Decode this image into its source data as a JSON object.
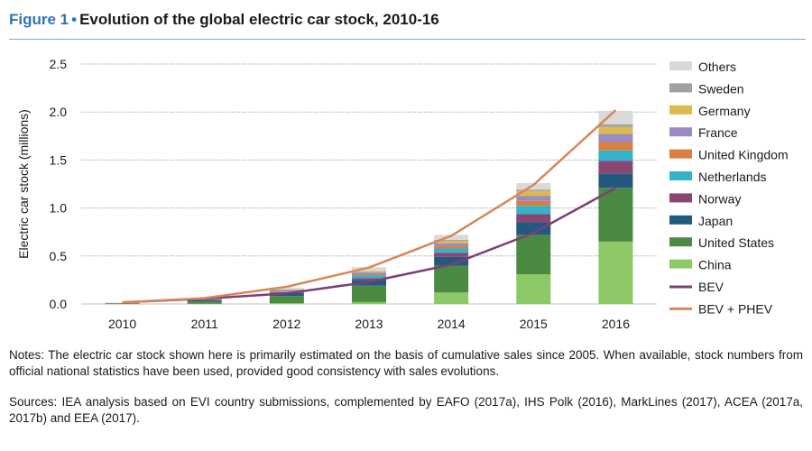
{
  "figure": {
    "number": "Figure 1",
    "bullet": "•",
    "title": "Evolution of the global electric car stock, 2010-16"
  },
  "notes": "Notes: The electric car stock shown here is primarily estimated on the basis of cumulative sales since 2005. When available, stock numbers from official national statistics have been used, provided good consistency with sales evolutions.",
  "sources": "Sources: IEA analysis based on EVI country submissions, complemented by EAFO (2017a), IHS Polk (2016), MarkLines (2017), ACEA (2017a, 2017b) and EEA (2017).",
  "chart_data": {
    "type": "bar",
    "stacked": true,
    "ylabel": "Electric car stock (millions)",
    "xlabel": "",
    "ylim": [
      0,
      2.5
    ],
    "yticks": [
      "0.0",
      "0.5",
      "1.0",
      "1.5",
      "2.0",
      "2.5"
    ],
    "grid": true,
    "legend_position": "right",
    "categories": [
      "2010",
      "2011",
      "2012",
      "2013",
      "2014",
      "2015",
      "2016"
    ],
    "series": [
      {
        "name": "China",
        "color": "#8cc866",
        "values": [
          0.0005,
          0.003,
          0.008,
          0.02,
          0.12,
          0.31,
          0.65
        ]
      },
      {
        "name": "United States",
        "color": "#4b8a43",
        "values": [
          0.003,
          0.022,
          0.075,
          0.17,
          0.28,
          0.41,
          0.56
        ]
      },
      {
        "name": "Japan",
        "color": "#24597f",
        "values": [
          0.005,
          0.015,
          0.032,
          0.06,
          0.09,
          0.13,
          0.15
        ]
      },
      {
        "name": "Norway",
        "color": "#8a4672",
        "values": [
          0.0005,
          0.003,
          0.008,
          0.02,
          0.044,
          0.085,
          0.13
        ]
      },
      {
        "name": "Netherlands",
        "color": "#35b1cb",
        "values": [
          0.0003,
          0.001,
          0.007,
          0.03,
          0.044,
          0.088,
          0.11
        ]
      },
      {
        "name": "United Kingdom",
        "color": "#d7803f",
        "values": [
          0.0005,
          0.002,
          0.006,
          0.01,
          0.024,
          0.05,
          0.087
        ]
      },
      {
        "name": "France",
        "color": "#9a8cc2",
        "values": [
          0.0005,
          0.003,
          0.009,
          0.018,
          0.031,
          0.054,
          0.084
        ]
      },
      {
        "name": "Germany",
        "color": "#e0b94e",
        "values": [
          0.0005,
          0.002,
          0.005,
          0.012,
          0.025,
          0.049,
          0.073
        ]
      },
      {
        "name": "Sweden",
        "color": "#a1a1a1",
        "values": [
          0.0,
          0.0005,
          0.001,
          0.004,
          0.009,
          0.016,
          0.029
        ]
      },
      {
        "name": "Others",
        "color": "#d9d9d9",
        "values": [
          0.002,
          0.006,
          0.02,
          0.04,
          0.054,
          0.067,
          0.14
        ]
      }
    ],
    "lines": [
      {
        "name": "BEV",
        "color": "#7e3f74",
        "values": [
          0.017,
          0.055,
          0.11,
          0.23,
          0.41,
          0.74,
          1.21
        ]
      },
      {
        "name": "BEV + PHEV",
        "color": "#d9865a",
        "values": [
          0.017,
          0.061,
          0.18,
          0.38,
          0.71,
          1.24,
          2.02
        ]
      }
    ],
    "legend_order": [
      "Others",
      "Sweden",
      "Germany",
      "France",
      "United Kingdom",
      "Netherlands",
      "Norway",
      "Japan",
      "United States",
      "China",
      "BEV",
      "BEV + PHEV"
    ]
  }
}
